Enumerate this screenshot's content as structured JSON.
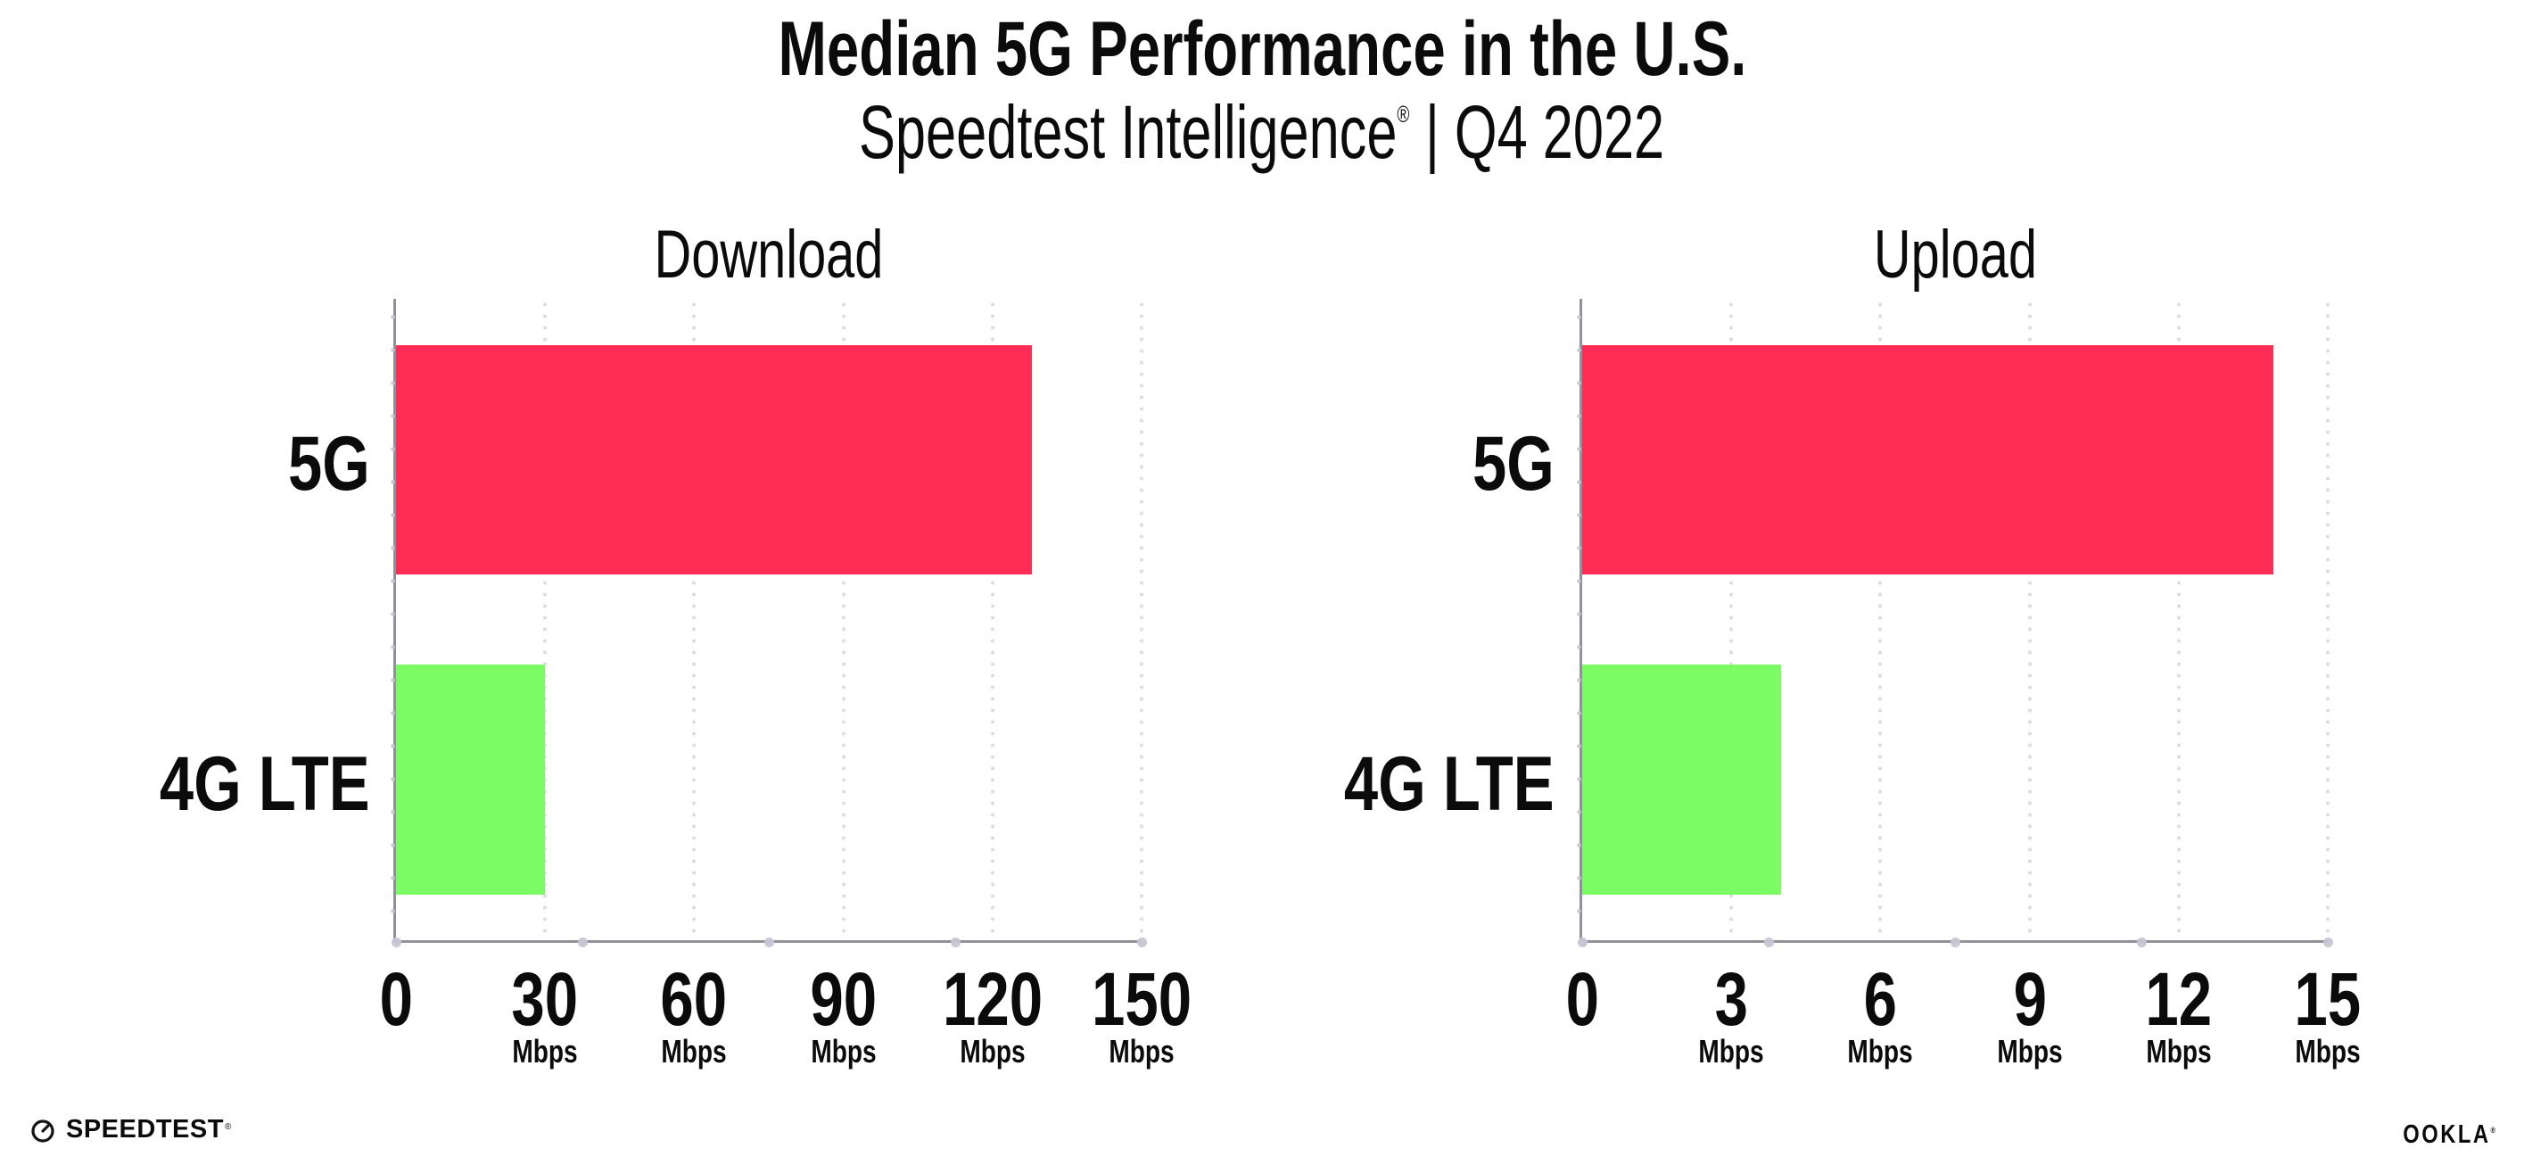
{
  "header": {
    "title": "Median 5G Performance in the U.S.",
    "subtitle_brand": "Speedtest Intelligence",
    "subtitle_reg": "®",
    "subtitle_rest": "| Q4 2022"
  },
  "chart_data": [
    {
      "type": "bar",
      "orientation": "horizontal",
      "title": "Download",
      "categories": [
        "5G",
        "4G LTE"
      ],
      "values": [
        128,
        30
      ],
      "unit": "Mbps",
      "xlabel": "",
      "ylabel": "",
      "xlim": [
        0,
        150
      ],
      "xticks": [
        0,
        30,
        60,
        90,
        120,
        150
      ],
      "bar_colors": [
        "#FF2D55",
        "#7CFC64"
      ],
      "grid": "dotted-vertical",
      "legend": "none"
    },
    {
      "type": "bar",
      "orientation": "horizontal",
      "title": "Upload",
      "categories": [
        "5G",
        "4G LTE"
      ],
      "values": [
        13.9,
        4
      ],
      "unit": "Mbps",
      "xlabel": "",
      "ylabel": "",
      "xlim": [
        0,
        15
      ],
      "xticks": [
        0,
        3,
        6,
        9,
        12,
        15
      ],
      "bar_colors": [
        "#FF2D55",
        "#7CFC64"
      ],
      "grid": "dotted-vertical",
      "legend": "none"
    }
  ],
  "footer": {
    "speedtest": {
      "text": "SPEEDTEST",
      "trademark": "®"
    },
    "ookla": {
      "text": "OOKLA",
      "trademark": "®"
    }
  },
  "colors": {
    "bar_5g": "#FF2D55",
    "bar_4g_lte": "#7CFC64",
    "axis": "#91919B",
    "grid_dot": "#DCDCE6",
    "text": "#0B0B0B",
    "background": "#FFFFFF"
  }
}
